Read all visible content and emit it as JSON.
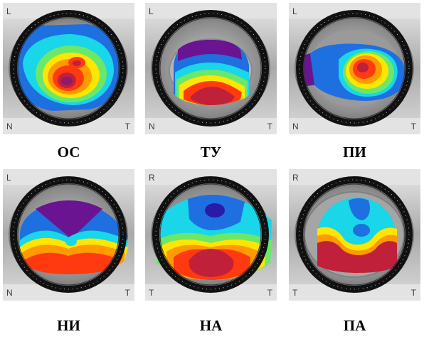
{
  "panels": [
    {
      "id": "oc",
      "caption": "ОС",
      "top_label": "L",
      "bottom_left": "N",
      "bottom_right": "T"
    },
    {
      "id": "tu",
      "caption": "ТУ",
      "top_label": "L",
      "bottom_left": "N",
      "bottom_right": "T"
    },
    {
      "id": "pi",
      "caption": "ПИ",
      "top_label": "L",
      "bottom_left": "N",
      "bottom_right": "T"
    },
    {
      "id": "ni",
      "caption": "НИ",
      "top_label": "L",
      "bottom_left": "N",
      "bottom_right": "T"
    },
    {
      "id": "na",
      "caption": "НА",
      "top_label": "R",
      "bottom_left": "T",
      "bottom_right": "T"
    },
    {
      "id": "pa",
      "caption": "ПА",
      "top_label": "R",
      "bottom_left": "T",
      "bottom_right": "T"
    }
  ],
  "colors": {
    "map_scale": [
      "#8e1a6e",
      "#c0203a",
      "#ff3a10",
      "#ff9a00",
      "#ffe600",
      "#6be86a",
      "#19d6e8",
      "#1e6fe0",
      "#2a1aa8",
      "#6a1492"
    ]
  }
}
